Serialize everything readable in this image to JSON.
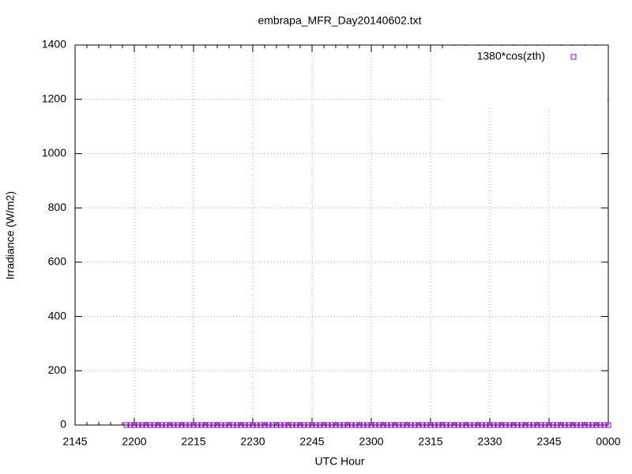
{
  "chart_data": {
    "type": "scatter",
    "title": "embrapa_MFR_Day20140602.txt",
    "x_label": "UTC Hour",
    "y_label": "Irradiance (W/m2)",
    "xlim": [
      1305,
      1440
    ],
    "xticks": [
      {
        "value": 1305,
        "label": "2145"
      },
      {
        "value": 1320,
        "label": "2200"
      },
      {
        "value": 1335,
        "label": "2215"
      },
      {
        "value": 1350,
        "label": "2230"
      },
      {
        "value": 1365,
        "label": "2245"
      },
      {
        "value": 1380,
        "label": "2300"
      },
      {
        "value": 1395,
        "label": "2315"
      },
      {
        "value": 1410,
        "label": "2330"
      },
      {
        "value": 1425,
        "label": "2345"
      },
      {
        "value": 1440,
        "label": "0000"
      }
    ],
    "ylim": [
      0,
      1400
    ],
    "yticks": [
      0,
      200,
      400,
      600,
      800,
      1000,
      1200,
      1400
    ],
    "grid": true,
    "legend": "top-right",
    "series": [
      {
        "name": "1380*cos(zth)",
        "color": "#9400d3",
        "x": [
          1318,
          1319,
          1320,
          1321,
          1322,
          1323,
          1324,
          1325,
          1326,
          1327,
          1328,
          1329,
          1330,
          1331,
          1332,
          1333,
          1334,
          1335,
          1336,
          1337,
          1338,
          1339,
          1340,
          1341,
          1342,
          1343,
          1344,
          1345,
          1346,
          1347,
          1348,
          1349,
          1350,
          1351,
          1352,
          1353,
          1354,
          1355,
          1356,
          1357,
          1358,
          1359,
          1360,
          1361,
          1362,
          1363,
          1364,
          1365,
          1366,
          1367,
          1368,
          1369,
          1370,
          1371,
          1372,
          1373,
          1374,
          1375,
          1376,
          1377,
          1378,
          1379,
          1380,
          1381,
          1382,
          1383,
          1384,
          1385,
          1386,
          1387,
          1388,
          1389,
          1390,
          1391,
          1392,
          1393,
          1394,
          1395,
          1396,
          1397,
          1398,
          1399,
          1400,
          1401,
          1402,
          1403,
          1404,
          1405,
          1406,
          1407,
          1408,
          1409,
          1410,
          1411,
          1412,
          1413,
          1414,
          1415,
          1416,
          1417,
          1418,
          1419,
          1420,
          1421,
          1422,
          1423,
          1424,
          1425,
          1426,
          1427,
          1428,
          1429,
          1430,
          1431,
          1432,
          1433,
          1434,
          1435,
          1436,
          1437,
          1438,
          1439,
          1440
        ],
        "values": [
          0,
          0,
          0,
          0,
          0,
          0,
          0,
          0,
          0,
          0,
          0,
          0,
          0,
          0,
          0,
          0,
          0,
          0,
          0,
          0,
          0,
          0,
          0,
          0,
          0,
          0,
          0,
          0,
          0,
          0,
          0,
          0,
          0,
          0,
          0,
          0,
          0,
          0,
          0,
          0,
          0,
          0,
          0,
          0,
          0,
          0,
          0,
          0,
          0,
          0,
          0,
          0,
          0,
          0,
          0,
          0,
          0,
          0,
          0,
          0,
          0,
          0,
          0,
          0,
          0,
          0,
          0,
          0,
          0,
          0,
          0,
          0,
          0,
          0,
          0,
          0,
          0,
          0,
          0,
          0,
          0,
          0,
          0,
          0,
          0,
          0,
          0,
          0,
          0,
          0,
          0,
          0,
          0,
          0,
          0,
          0,
          0,
          0,
          0,
          0,
          0,
          0,
          0,
          0,
          0,
          0,
          0,
          0,
          0,
          0,
          0,
          0,
          0,
          0,
          0,
          0,
          0,
          0,
          0,
          0,
          0,
          0,
          0
        ]
      }
    ]
  }
}
